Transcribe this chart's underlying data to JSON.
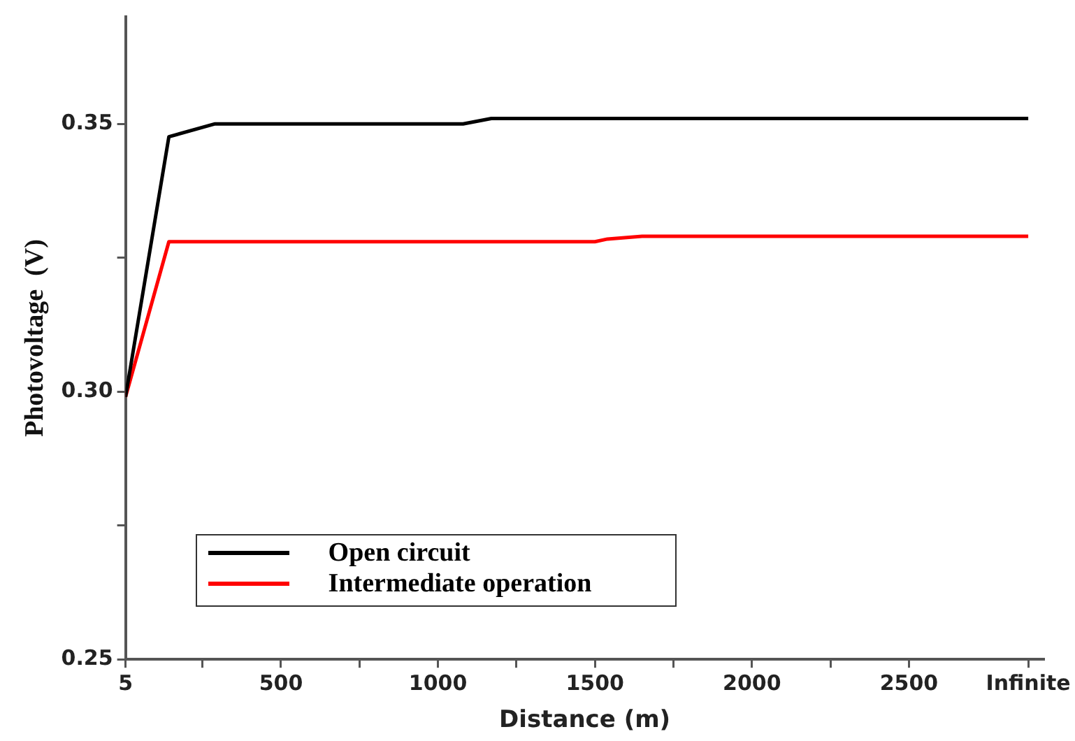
{
  "chart_data": {
    "type": "line",
    "xlabel": "Distance (m)",
    "ylabel": "Photovoltage  (V)",
    "xlim": [
      5,
      2930
    ],
    "ylim": [
      0.25,
      0.37
    ],
    "xticks": [
      5,
      {
        "value": 250,
        "label": null
      },
      500,
      {
        "value": 750,
        "label": null
      },
      1000,
      {
        "value": 1250,
        "label": null
      },
      1500,
      {
        "value": 1750,
        "label": null
      },
      2000,
      {
        "value": 2250,
        "label": null
      },
      2500,
      {
        "value": 2880,
        "label": "Infinite"
      }
    ],
    "yticks": [
      0.25,
      {
        "value": 0.275,
        "label": null
      },
      {
        "value": 0.3,
        "label": "0.30"
      },
      {
        "value": 0.325,
        "label": null
      },
      0.35
    ],
    "grid": false,
    "legend": "bottom left",
    "marker": "none",
    "line_style": "solid",
    "series": [
      {
        "name": "Open circuit",
        "color": "#000000",
        "x": [
          5,
          143,
          290,
          1080,
          1170,
          2880
        ],
        "values": [
          0.299,
          0.3476,
          0.35,
          0.35,
          0.351,
          0.351
        ]
      },
      {
        "name": "Intermediate operation",
        "color": "#ff0000",
        "x": [
          5,
          143,
          1500,
          1540,
          1650,
          2880
        ],
        "values": [
          0.299,
          0.328,
          0.328,
          0.3285,
          0.329,
          0.329
        ]
      }
    ]
  }
}
